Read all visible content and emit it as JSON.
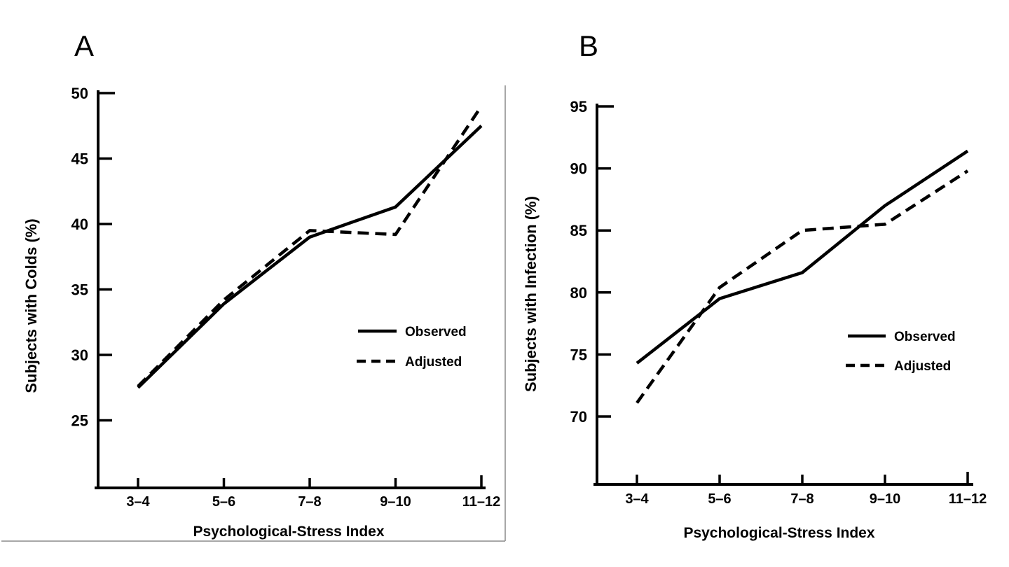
{
  "figure": {
    "background": "#ffffff",
    "line_color": "#000000"
  },
  "chart_data": [
    {
      "type": "line",
      "panel_label": "A",
      "xlabel": "Psychological-Stress Index",
      "ylabel": "Subjects with Colds (%)",
      "categories": [
        "3–4",
        "5–6",
        "7–8",
        "9–10",
        "11–12"
      ],
      "yticks": [
        25,
        30,
        35,
        40,
        45,
        50
      ],
      "ylim": [
        20,
        50
      ],
      "grid": false,
      "legend_position": "right-middle",
      "series": [
        {
          "name": "Observed",
          "style": "solid",
          "values": [
            27.5,
            33.9,
            39.0,
            41.3,
            47.5
          ]
        },
        {
          "name": "Adjusted",
          "style": "dashed",
          "values": [
            27.6,
            34.2,
            39.5,
            39.2,
            49.0
          ]
        }
      ]
    },
    {
      "type": "line",
      "panel_label": "B",
      "xlabel": "Psychological-Stress Index",
      "ylabel": "Subjects with Infection (%)",
      "categories": [
        "3–4",
        "5–6",
        "7–8",
        "9–10",
        "11–12"
      ],
      "yticks": [
        70,
        75,
        80,
        85,
        90,
        95
      ],
      "ylim": [
        64.5,
        95
      ],
      "grid": false,
      "legend_position": "right-middle",
      "series": [
        {
          "name": "Observed",
          "style": "solid",
          "values": [
            74.3,
            79.5,
            81.6,
            87.0,
            91.4
          ]
        },
        {
          "name": "Adjusted",
          "style": "dashed",
          "values": [
            71.1,
            80.4,
            85.0,
            85.5,
            89.8
          ]
        }
      ]
    }
  ]
}
